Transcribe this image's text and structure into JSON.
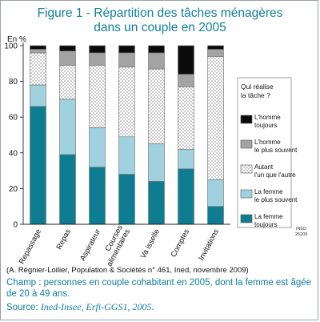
{
  "figure": {
    "title_line1": "Figure 1 - Répartition des tâches ménagères",
    "title_line2": "dans un couple en 2005",
    "y_unit": "En %",
    "badge": [
      "INED",
      "26209"
    ],
    "credit": "(A. Régnier-Loilier,    Population & Sociétés n° 461, Ined, novembre 2009)",
    "champ": "Champ  : personnes en couple cohabitant en 2005, dont la femme est âgée de 20 à 49 ans.",
    "source_label": "Source: ",
    "source_text": "Ined-Insee, Erfi-GGS1, 2005."
  },
  "chart_data": {
    "type": "bar",
    "stacked": true,
    "ylim": [
      0,
      100
    ],
    "yticks": [
      0,
      20,
      40,
      60,
      80,
      100
    ],
    "grid": false,
    "categories": [
      "Repassage",
      "Repas",
      "Aspirateur",
      "Courses alimentaires",
      "Vaisselle",
      "Comptes",
      "Invitations"
    ],
    "category_labels": [
      [
        "Repassage"
      ],
      [
        "Repas"
      ],
      [
        "Aspirateur"
      ],
      [
        "Courses",
        "alimentaires"
      ],
      [
        "Va isselle"
      ],
      [
        "Comptes"
      ],
      [
        "Invitations"
      ]
    ],
    "legend_title": [
      "Qui  réalise",
      "la tâche  ?"
    ],
    "legend_placement": "right",
    "series": [
      {
        "name": "La femme toujours",
        "legend_lines": [
          "La femme",
          "toujours"
        ],
        "color": "#0e7d91",
        "pattern": "solid",
        "values": [
          66,
          39,
          32,
          28,
          24,
          31,
          10
        ]
      },
      {
        "name": "La femme le plus souvent",
        "legend_lines": [
          "La femme",
          "le plus souvent"
        ],
        "color": "#9fd1de",
        "pattern": "solid",
        "values": [
          12,
          31,
          22,
          21,
          21,
          11,
          15
        ]
      },
      {
        "name": "Autant l'un que l'autre",
        "legend_lines": [
          "Autant",
          "l'un que l'autre"
        ],
        "color": "#ffffff",
        "pattern": "dots",
        "values": [
          18,
          19,
          35,
          39,
          42,
          35,
          69
        ]
      },
      {
        "name": "L'homme le plus souvent",
        "legend_lines": [
          "L'homme",
          "le plus souvent"
        ],
        "color": "#a3a3a3",
        "pattern": "solid",
        "values": [
          2,
          8,
          7,
          8,
          9,
          7,
          4
        ]
      },
      {
        "name": "L'homme toujours",
        "legend_lines": [
          "L'homme",
          "toujours"
        ],
        "color": "#0b0b0b",
        "pattern": "solid",
        "values": [
          2,
          3,
          4,
          4,
          4,
          16,
          2
        ]
      }
    ]
  }
}
